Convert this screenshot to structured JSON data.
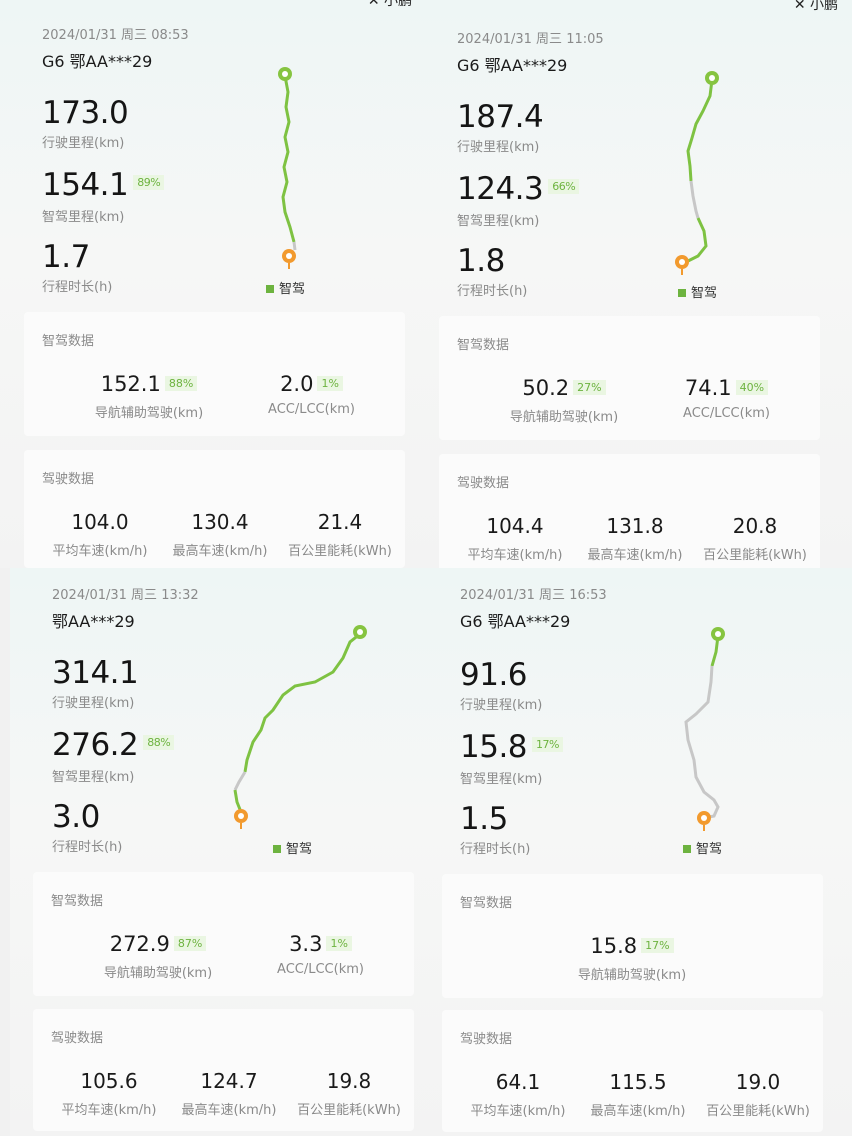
{
  "brand": "小鹏",
  "legend_label": "智驾",
  "section1_title": "智驾数据",
  "section2_title": "驾驶数据",
  "labels": {
    "drive_distance": "行驶里程(km)",
    "smart_distance": "智驾里程(km)",
    "duration": "行程时长(h)",
    "nav_assist": "导航辅助驾驶(km)",
    "acc_lcc": "ACC/LCC(km)",
    "avg_speed": "平均车速(km/h)",
    "max_speed": "最高车速(km/h)",
    "energy": "百公里能耗(kWh)"
  },
  "trips": [
    {
      "date": "2024/01/31 周三 08:53",
      "plate": "G6 鄂AA***29",
      "drive_distance": "173.0",
      "smart_distance": "154.1",
      "smart_pct": "89%",
      "duration": "1.7",
      "nav_assist": "152.1",
      "nav_pct": "88%",
      "acc_lcc": "2.0",
      "acc_pct": "1%",
      "avg_speed": "104.0",
      "max_speed": "130.4",
      "energy": "21.4"
    },
    {
      "date": "2024/01/31 周三 11:05",
      "plate": "G6 鄂AA***29",
      "drive_distance": "187.4",
      "smart_distance": "124.3",
      "smart_pct": "66%",
      "duration": "1.8",
      "nav_assist": "50.2",
      "nav_pct": "27%",
      "acc_lcc": "74.1",
      "acc_pct": "40%",
      "avg_speed": "104.4",
      "max_speed": "131.8",
      "energy": "20.8"
    },
    {
      "date": "2024/01/31 周三 13:32",
      "plate": "鄂AA***29",
      "drive_distance": "314.1",
      "smart_distance": "276.2",
      "smart_pct": "88%",
      "duration": "3.0",
      "nav_assist": "272.9",
      "nav_pct": "87%",
      "acc_lcc": "3.3",
      "acc_pct": "1%",
      "avg_speed": "105.6",
      "max_speed": "124.7",
      "energy": "19.8"
    },
    {
      "date": "2024/01/31 周三 16:53",
      "plate": "G6 鄂AA***29",
      "drive_distance": "91.6",
      "smart_distance": "15.8",
      "smart_pct": "17%",
      "duration": "1.5",
      "nav_assist": "15.8",
      "nav_pct": "17%",
      "avg_speed": "64.1",
      "max_speed": "115.5",
      "energy": "19.0"
    }
  ],
  "colors": {
    "smart_route": "#7ec242",
    "manual_route": "#c7c7c7",
    "start_pin": "#86c440",
    "end_pin": "#f29a2e",
    "accent": "#6db33f"
  }
}
